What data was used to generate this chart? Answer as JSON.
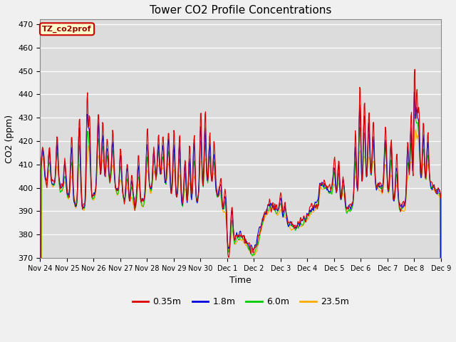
{
  "title": "Tower CO2 Profile Concentrations",
  "xlabel": "Time",
  "ylabel": "CO2 (ppm)",
  "ylim": [
    370,
    472
  ],
  "yticks": [
    370,
    380,
    390,
    400,
    410,
    420,
    430,
    440,
    450,
    460,
    470
  ],
  "bg_color": "#dcdcdc",
  "fig_color": "#f0f0f0",
  "annotation_text": "TZ_co2prof",
  "annotation_bg": "#ffffcc",
  "annotation_border": "#cc0000",
  "lines": {
    "0.35m": {
      "color": "#dd0000",
      "lw": 0.8
    },
    "1.8m": {
      "color": "#0000dd",
      "lw": 0.8
    },
    "6.0m": {
      "color": "#00cc00",
      "lw": 0.8
    },
    "23.5m": {
      "color": "#ffaa00",
      "lw": 0.8
    }
  },
  "xtick_labels": [
    "Nov 24",
    "Nov 25",
    "Nov 26",
    "Nov 27",
    "Nov 28",
    "Nov 29",
    "Nov 30",
    "Dec 1",
    "Dec 2",
    "Dec 3",
    "Dec 4",
    "Dec 5",
    "Dec 6",
    "Dec 7",
    "Dec 8",
    "Dec 9"
  ],
  "xtick_positions": [
    0,
    24,
    48,
    72,
    96,
    120,
    144,
    168,
    192,
    216,
    240,
    264,
    288,
    312,
    336,
    360
  ]
}
